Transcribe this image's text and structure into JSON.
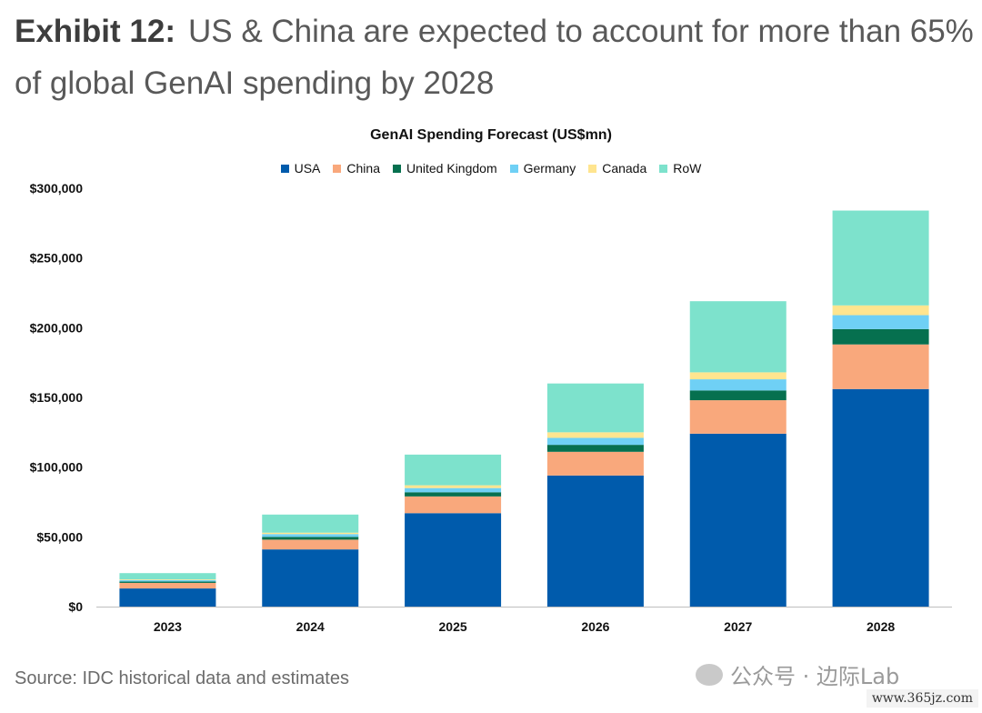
{
  "exhibit": {
    "label": "Exhibit 12:",
    "text": "US & China are expected to account for more than 65% of global GenAI spending by 2028"
  },
  "chart_data": {
    "type": "bar",
    "stacked": true,
    "title": "GenAI Spending Forecast (US$mn)",
    "categories": [
      "2023",
      "2024",
      "2025",
      "2026",
      "2027",
      "2028"
    ],
    "y_ticks": [
      "$0",
      "$50,000",
      "$100,000",
      "$150,000",
      "$200,000",
      "$250,000",
      "$300,000"
    ],
    "ylim": [
      0,
      300000
    ],
    "grid": false,
    "legend_position": "top",
    "series": [
      {
        "name": "USA",
        "color": "#005bac",
        "values": [
          13000,
          41000,
          67000,
          94000,
          124000,
          156000
        ]
      },
      {
        "name": "China",
        "color": "#f9a87c",
        "values": [
          4000,
          7000,
          12000,
          17000,
          24000,
          32000
        ]
      },
      {
        "name": "United Kingdom",
        "color": "#06704f",
        "values": [
          1000,
          2000,
          3000,
          5000,
          7000,
          11000
        ]
      },
      {
        "name": "Germany",
        "color": "#6fd0f5",
        "values": [
          1000,
          2000,
          3000,
          5000,
          8000,
          10000
        ]
      },
      {
        "name": "Canada",
        "color": "#ffe58f",
        "values": [
          500,
          1000,
          2000,
          4000,
          5000,
          7000
        ]
      },
      {
        "name": "RoW",
        "color": "#7de2cc",
        "values": [
          4500,
          13000,
          22000,
          35000,
          51000,
          68000
        ]
      }
    ]
  },
  "source": "Source: IDC historical data and estimates",
  "watermark": "公众号 · 边际Lab",
  "site": "www.365jz.com"
}
